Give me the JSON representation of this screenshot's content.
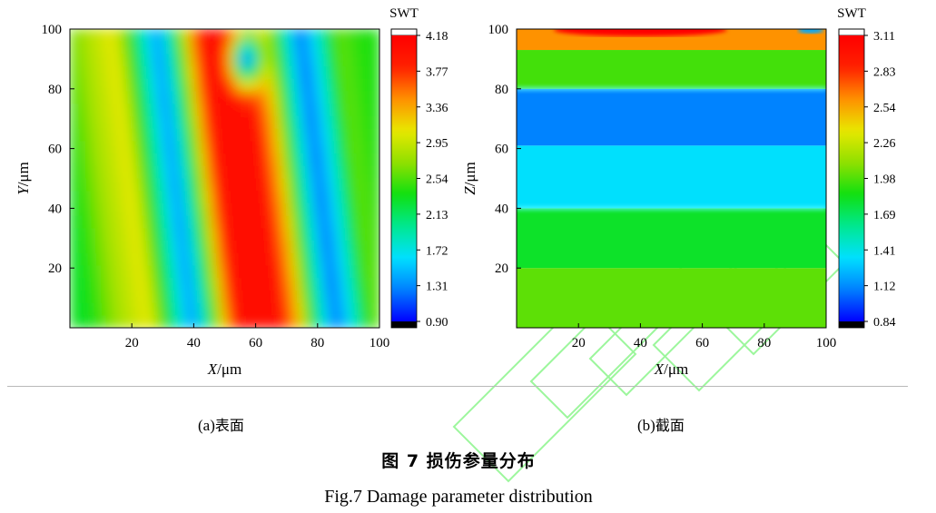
{
  "colors": {
    "scale": [
      "#000000",
      "#0000ff",
      "#0080ff",
      "#00e0ff",
      "#00e890",
      "#10e010",
      "#90e000",
      "#e8e800",
      "#ff9000",
      "#ff2000",
      "#ff0000"
    ],
    "separator": "#b9b9b9",
    "watermark": "#33ff33"
  },
  "chart_data": [
    {
      "type": "heatmap",
      "id": "a",
      "xlabel_italic": "X",
      "xlabel_unit": "/μm",
      "ylabel_italic": "Y",
      "ylabel_unit": "/μm",
      "xlim": [
        0,
        100
      ],
      "ylim": [
        0,
        100
      ],
      "xticks": [
        20,
        40,
        60,
        80,
        100
      ],
      "yticks": [
        20,
        40,
        60,
        80,
        100
      ],
      "colorbar_title": "SWT",
      "colorbar_ticks": [
        4.18,
        3.77,
        3.36,
        2.95,
        2.54,
        2.13,
        1.72,
        1.31,
        0.9
      ],
      "zlim": [
        0.9,
        4.18
      ],
      "field_description": "vertical bands across X; high ridge near X=45-70, low troughs near X=35 and X=80",
      "x_profile": [
        [
          0,
          2.3
        ],
        [
          10,
          2.8
        ],
        [
          20,
          3.1
        ],
        [
          28,
          2.0
        ],
        [
          34,
          1.3
        ],
        [
          40,
          2.3
        ],
        [
          47,
          3.9
        ],
        [
          55,
          4.1
        ],
        [
          62,
          4.0
        ],
        [
          68,
          3.3
        ],
        [
          73,
          2.2
        ],
        [
          80,
          1.2
        ],
        [
          86,
          1.8
        ],
        [
          92,
          2.6
        ],
        [
          100,
          2.4
        ]
      ],
      "hotspot": {
        "x": 57,
        "y": 90,
        "value": 1.3
      }
    },
    {
      "type": "heatmap",
      "id": "b",
      "xlabel_italic": "X",
      "xlabel_unit": "/μm",
      "ylabel_italic": "Z",
      "ylabel_unit": "/μm",
      "xlim": [
        0,
        100
      ],
      "ylim": [
        0,
        100
      ],
      "xticks": [
        20,
        40,
        60,
        80,
        100
      ],
      "yticks": [
        20,
        40,
        60,
        80,
        100
      ],
      "colorbar_title": "SWT",
      "colorbar_ticks": [
        3.11,
        2.83,
        2.54,
        2.26,
        1.98,
        1.69,
        1.41,
        1.12,
        0.84
      ],
      "zlim": [
        0.84,
        3.11
      ],
      "layers": [
        {
          "z_from": 0,
          "z_to": 20,
          "value": 2.0
        },
        {
          "z_from": 20,
          "z_to": 40,
          "value": 1.8
        },
        {
          "z_from": 40,
          "z_to": 61,
          "value": 1.35
        },
        {
          "z_from": 61,
          "z_to": 80,
          "value": 1.1
        },
        {
          "z_from": 80,
          "z_to": 93,
          "value": 1.95
        },
        {
          "z_from": 93,
          "z_to": 100,
          "value": 2.6
        }
      ],
      "top_surface_max": 3.11
    }
  ],
  "captions": {
    "a_label": "(a)",
    "a_text": "表面",
    "b_label": "(b)",
    "b_text": "截面",
    "figure_zh": "图 7  损伤参量分布",
    "figure_en": "Fig.7 Damage parameter distribution"
  }
}
